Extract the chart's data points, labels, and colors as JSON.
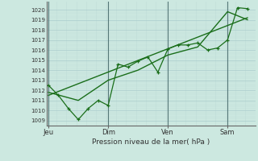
{
  "background_color": "#cce8e0",
  "grid_color_major": "#aacccc",
  "grid_color_minor": "#c0ddd8",
  "line_color": "#1a6e1a",
  "ylabel_ticks": [
    1009,
    1010,
    1011,
    1012,
    1013,
    1014,
    1015,
    1016,
    1017,
    1018,
    1019,
    1020
  ],
  "ylim": [
    1008.5,
    1020.8
  ],
  "xlim": [
    -0.1,
    10.4
  ],
  "xlabel": "Pression niveau de la mer( hPa )",
  "xtick_labels": [
    "Jeu",
    "Dim",
    "Ven",
    "Sam"
  ],
  "xtick_positions": [
    0.0,
    3.0,
    6.0,
    9.0
  ],
  "vline_positions": [
    0.0,
    3.0,
    6.0,
    9.0
  ],
  "line1_x": [
    0,
    0.5,
    1.0,
    1.5,
    2.0,
    2.5,
    3.0,
    3.5,
    4.0,
    4.5,
    5.0,
    5.5,
    6.0,
    6.5,
    7.0,
    7.5,
    8.0,
    8.5,
    9.0,
    9.5,
    10.0
  ],
  "line1_y": [
    1012.5,
    1011.5,
    1010.2,
    1009.1,
    1010.2,
    1011.0,
    1010.5,
    1014.6,
    1014.3,
    1014.9,
    1015.3,
    1013.8,
    1016.1,
    1016.5,
    1016.5,
    1016.7,
    1016.0,
    1016.2,
    1017.0,
    1020.2,
    1020.1
  ],
  "line2_x": [
    0,
    1.5,
    3.0,
    4.5,
    6.0,
    7.5,
    9.0,
    10.0
  ],
  "line2_y": [
    1011.8,
    1011.0,
    1013.0,
    1014.0,
    1015.5,
    1016.3,
    1019.8,
    1019.0
  ],
  "line3_x": [
    0,
    10.0
  ],
  "line3_y": [
    1011.5,
    1019.2
  ]
}
